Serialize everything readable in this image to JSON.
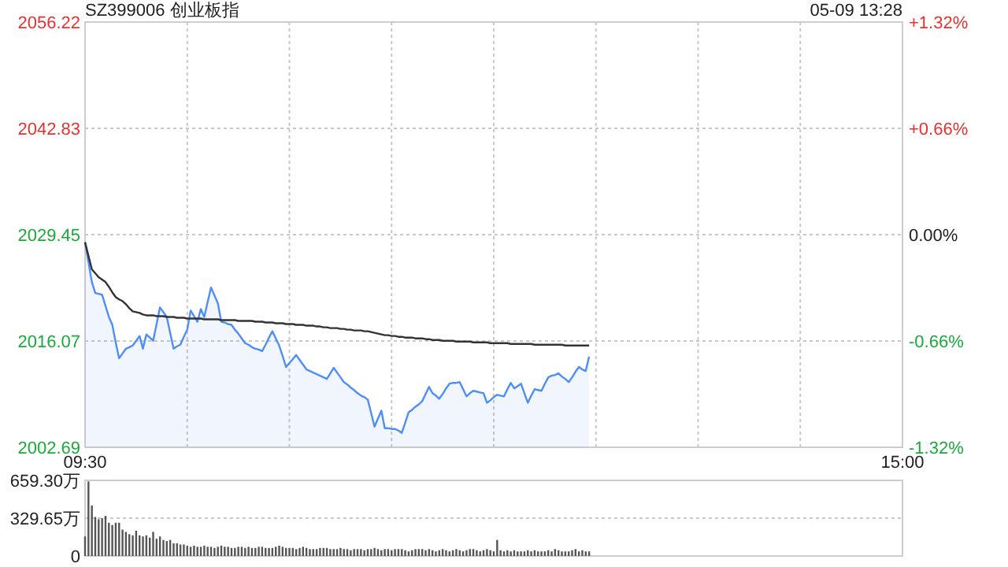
{
  "chart_data": [
    {
      "type": "line",
      "title": "SZ399006 创业板指",
      "subtitle": "05-09 13:28",
      "categories": [
        "09:30",
        null,
        null,
        null,
        null,
        null,
        null,
        null,
        null,
        null,
        null,
        null,
        null,
        null,
        null,
        null,
        null,
        null,
        null,
        null,
        null,
        null,
        null,
        null,
        null,
        null,
        null,
        null,
        null,
        null,
        null,
        null,
        null,
        null,
        null,
        null,
        null,
        null,
        null,
        null,
        null,
        null,
        null,
        null,
        null,
        null,
        null,
        null,
        null,
        null,
        null,
        null,
        null,
        null,
        null,
        null,
        null,
        null,
        null,
        null,
        null,
        null,
        null,
        null,
        null,
        null,
        null,
        null,
        null,
        null,
        null,
        null,
        null,
        null,
        null,
        null,
        null,
        null,
        null,
        null,
        null,
        null,
        null,
        null,
        null,
        null,
        null,
        null,
        null,
        null,
        null,
        null,
        null,
        null,
        null,
        null,
        null,
        null,
        null,
        null,
        null,
        null,
        null,
        null,
        null,
        null,
        null,
        null,
        null,
        null,
        null,
        null,
        null,
        null,
        null,
        null,
        null,
        null,
        null,
        null,
        null,
        null,
        null,
        null,
        null,
        null,
        null,
        null,
        null,
        null,
        null,
        null,
        null,
        null,
        null,
        null,
        null,
        null,
        null,
        null,
        null,
        null,
        null,
        null,
        null,
        null,
        null,
        null,
        null,
        null,
        null,
        null,
        null,
        null,
        null,
        null,
        null,
        null,
        null,
        null,
        null,
        null,
        null,
        null,
        null,
        null,
        null,
        null,
        null,
        null,
        null,
        null,
        null,
        null,
        null,
        null,
        null,
        null,
        null,
        null,
        null,
        null,
        null,
        null,
        null,
        null,
        null,
        null,
        null,
        null,
        null,
        null,
        null,
        null,
        null,
        null,
        null,
        null,
        null,
        null,
        null,
        null,
        null,
        null,
        null,
        null,
        null,
        null,
        null,
        null,
        null,
        null,
        null,
        null,
        null,
        null,
        null,
        null,
        null,
        null,
        null,
        null,
        null,
        null,
        null,
        null,
        null,
        null,
        null,
        null,
        null,
        null,
        null,
        null,
        null,
        null,
        null,
        null,
        null,
        null,
        "15:00"
      ],
      "ylim": [
        2002.69,
        2056.22
      ],
      "yticks": [
        2002.69,
        2016.07,
        2029.45,
        2042.83,
        2056.22
      ],
      "y2lim": [
        -1.32,
        1.32
      ],
      "y2ticks": [
        {
          "value": -1.32,
          "label": "-1.32%"
        },
        {
          "value": -0.66,
          "label": "-0.66%"
        },
        {
          "value": 0,
          "label": "0.00%"
        },
        {
          "value": 0.66,
          "label": "+0.66%"
        },
        {
          "value": 1.32,
          "label": "+1.32%"
        }
      ],
      "grid": true,
      "series": [
        {
          "type": "area",
          "color": "#4f8ef7",
          "values": [
            2028.5,
            2026.0,
            2023.5,
            2022.1,
            2022.0,
            2021.9,
            2020.5,
            2019.1,
            2018.1,
            2015.9,
            2013.9,
            2014.5,
            2015.1,
            2015.3,
            2015.5,
            2016.1,
            2016.7,
            2015.1,
            2016.9,
            2016.5,
            2016.1,
            2018.2,
            2020.3,
            2019.7,
            2019.1,
            2017.1,
            2015.1,
            2015.4,
            2015.6,
            2016.6,
            2017.5,
            2019.9,
            2019.2,
            2018.5,
            2020.1,
            2019.1,
            2021.0,
            2022.8,
            2021.8,
            2020.8,
            2018.5,
            2018.4,
            2018.2,
            2018.1,
            2017.5,
            2017.0,
            2016.4,
            2015.8,
            2015.6,
            2015.3,
            2015.1,
            2015.0,
            2014.8,
            2015.6,
            2016.5,
            2017.3,
            2016.4,
            2015.5,
            2014.2,
            2012.8,
            2013.3,
            2013.8,
            2014.3,
            2013.7,
            2013.1,
            2012.5,
            2012.3,
            2012.1,
            2011.9,
            2011.7,
            2011.5,
            2011.3,
            2012.0,
            2012.7,
            2012.1,
            2011.5,
            2010.9,
            2010.6,
            2010.2,
            2009.9,
            2009.5,
            2009.2,
            2009.0,
            2008.7,
            2007.0,
            2005.3,
            2006.3,
            2007.3,
            2005.1,
            2005.1,
            2005.0,
            2005.0,
            2004.8,
            2004.5,
            2005.8,
            2007.1,
            2007.4,
            2007.8,
            2008.1,
            2008.5,
            2009.4,
            2010.3,
            2009.5,
            2009.2,
            2008.8,
            2009.4,
            2010.1,
            2010.7,
            2010.8,
            2010.8,
            2010.9,
            2010.0,
            2009.1,
            2009.5,
            2009.8,
            2009.7,
            2009.6,
            2009.5,
            2008.3,
            2008.6,
            2009.0,
            2009.3,
            2009.2,
            2009.1,
            2010.0,
            2010.8,
            2010.1,
            2010.4,
            2010.7,
            2009.5,
            2008.3,
            2009.2,
            2010.0,
            2009.9,
            2009.8,
            2010.7,
            2011.5,
            2011.7,
            2011.8,
            2012.0,
            2011.6,
            2011.3,
            2010.9,
            2011.5,
            2012.2,
            2012.8,
            2012.5,
            2012.3,
            2014.1,
            null,
            null,
            null,
            null,
            null,
            null,
            null,
            null,
            null,
            null,
            null,
            null,
            null,
            null,
            null,
            null,
            null,
            null,
            null,
            null,
            null,
            null,
            null,
            null,
            null,
            null,
            null,
            null,
            null,
            null,
            null,
            null,
            null,
            null,
            null,
            null,
            null,
            null,
            null,
            null,
            null,
            null,
            null,
            null,
            null,
            null,
            null,
            null,
            null,
            null,
            null,
            null,
            null,
            null,
            null,
            null,
            null,
            null,
            null,
            null,
            null,
            null,
            null,
            null,
            null,
            null,
            null,
            null,
            null,
            null,
            null,
            null,
            null,
            null,
            null,
            null,
            null,
            null,
            null,
            null,
            null,
            null,
            null,
            null,
            null,
            null,
            null,
            null,
            null,
            null,
            null,
            null
          ]
        },
        {
          "type": "line",
          "color": "#333333",
          "values": [
            2028.5,
            2026.8,
            2025.1,
            2024.6,
            2024.1,
            2023.8,
            2023.5,
            2022.9,
            2022.2,
            2021.6,
            2021.3,
            2021.1,
            2020.7,
            2020.2,
            2019.8,
            2019.7,
            2019.6,
            2019.4,
            2019.3,
            2019.3,
            2019.3,
            2019.2,
            2019.2,
            2019.2,
            2019.1,
            2019.1,
            2019.1,
            2019.0,
            2019.0,
            2019.0,
            2018.9,
            2018.9,
            2018.9,
            2018.9,
            2018.9,
            2018.8,
            2018.8,
            2018.8,
            2018.8,
            2018.8,
            2018.7,
            2018.7,
            2018.7,
            2018.7,
            2018.7,
            2018.6,
            2018.6,
            2018.6,
            2018.6,
            2018.6,
            2018.5,
            2018.5,
            2018.5,
            2018.4,
            2018.4,
            2018.4,
            2018.3,
            2018.3,
            2018.3,
            2018.2,
            2018.2,
            2018.2,
            2018.1,
            2018.1,
            2018.1,
            2018.0,
            2018.0,
            2018.0,
            2017.9,
            2017.9,
            2017.8,
            2017.8,
            2017.7,
            2017.7,
            2017.7,
            2017.6,
            2017.6,
            2017.5,
            2017.5,
            2017.4,
            2017.4,
            2017.4,
            2017.3,
            2017.3,
            2017.2,
            2017.1,
            2017.0,
            2016.9,
            2016.8,
            2016.8,
            2016.7,
            2016.7,
            2016.6,
            2016.6,
            2016.5,
            2016.5,
            2016.5,
            2016.4,
            2016.4,
            2016.4,
            2016.3,
            2016.3,
            2016.2,
            2016.2,
            2016.2,
            2016.1,
            2016.1,
            2016.1,
            2016.1,
            2016.0,
            2016.0,
            2016.0,
            2016.0,
            2016.0,
            2015.9,
            2015.9,
            2015.9,
            2015.9,
            2015.9,
            2015.8,
            2015.8,
            2015.8,
            2015.8,
            2015.8,
            2015.8,
            2015.7,
            2015.7,
            2015.7,
            2015.7,
            2015.7,
            2015.7,
            2015.7,
            2015.6,
            2015.6,
            2015.6,
            2015.6,
            2015.6,
            2015.6,
            2015.6,
            2015.6,
            2015.6,
            2015.5,
            2015.5,
            2015.5,
            2015.5,
            2015.5,
            2015.5,
            2015.5,
            2015.5,
            null,
            null,
            null,
            null,
            null,
            null,
            null,
            null,
            null,
            null,
            null,
            null,
            null,
            null,
            null,
            null,
            null,
            null,
            null,
            null,
            null,
            null,
            null,
            null,
            null,
            null,
            null,
            null,
            null,
            null,
            null,
            null,
            null,
            null,
            null,
            null,
            null,
            null,
            null,
            null,
            null,
            null,
            null,
            null,
            null,
            null,
            null,
            null,
            null,
            null,
            null,
            null,
            null,
            null,
            null,
            null,
            null,
            null,
            null,
            null,
            null,
            null,
            null,
            null,
            null,
            null,
            null,
            null,
            null,
            null,
            null,
            null,
            null,
            null,
            null,
            null,
            null,
            null,
            null,
            null,
            null,
            null,
            null,
            null,
            null,
            null,
            null,
            null,
            null,
            null,
            null,
            null
          ]
        }
      ]
    },
    {
      "type": "bar",
      "color": "#555555",
      "ylim": [
        0,
        659.3
      ],
      "yticks": [
        {
          "value": 0,
          "label": "0"
        },
        {
          "value": 329.65,
          "label": "329.65万"
        },
        {
          "value": 659.3,
          "label": "659.30万"
        }
      ],
      "grid": "y",
      "tick_labels": "y",
      "categories": [
        null,
        null,
        null,
        null,
        null,
        null,
        null,
        null,
        null,
        null,
        null,
        null,
        null,
        null,
        null,
        null,
        null,
        null,
        null,
        null,
        null,
        null,
        null,
        null,
        null,
        null,
        null,
        null,
        null,
        null,
        null,
        null,
        null,
        null,
        null,
        null,
        null,
        null,
        null,
        null,
        null,
        null,
        null,
        null,
        null,
        null,
        null,
        null,
        null,
        null,
        null,
        null,
        null,
        null,
        null,
        null,
        null,
        null,
        null,
        null,
        null,
        null,
        null,
        null,
        null,
        null,
        null,
        null,
        null,
        null,
        null,
        null,
        null,
        null,
        null,
        null,
        null,
        null,
        null,
        null,
        null,
        null,
        null,
        null,
        null,
        null,
        null,
        null,
        null,
        null,
        null,
        null,
        null,
        null,
        null,
        null,
        null,
        null,
        null,
        null,
        null,
        null,
        null,
        null,
        null,
        null,
        null,
        null,
        null,
        null,
        null,
        null,
        null,
        null,
        null,
        null,
        null,
        null,
        null,
        null,
        null,
        null,
        null,
        null,
        null,
        null,
        null,
        null,
        null,
        null,
        null,
        null,
        null,
        null,
        null,
        null,
        null,
        null,
        null,
        null,
        null,
        null,
        null,
        null,
        null,
        null,
        null,
        null,
        null,
        null,
        null,
        null,
        null,
        null,
        null,
        null,
        null,
        null,
        null,
        null,
        null,
        null,
        null,
        null,
        null,
        null,
        null,
        null,
        null,
        null,
        null,
        null,
        null,
        null,
        null,
        null,
        null,
        null,
        null,
        null,
        null,
        null,
        null,
        null,
        null,
        null,
        null,
        null,
        null,
        null,
        null,
        null,
        null,
        null,
        null,
        null,
        null,
        null,
        null,
        null,
        null,
        null,
        null,
        null,
        null,
        null,
        null,
        null,
        null,
        null,
        null,
        null,
        null,
        null,
        null,
        null,
        null,
        null,
        null,
        null,
        null,
        null,
        null,
        null,
        null,
        null,
        null,
        null,
        null,
        null,
        null,
        null,
        null,
        null,
        null,
        null,
        null,
        null,
        null,
        null,
        null
      ],
      "values": [
        170,
        650,
        440,
        340,
        320,
        330,
        350,
        290,
        270,
        290,
        290,
        230,
        210,
        190,
        180,
        220,
        180,
        170,
        180,
        160,
        210,
        150,
        170,
        140,
        130,
        140,
        110,
        110,
        100,
        100,
        90,
        80,
        90,
        80,
        80,
        90,
        80,
        80,
        70,
        80,
        90,
        80,
        80,
        70,
        70,
        80,
        80,
        70,
        80,
        70,
        70,
        80,
        80,
        70,
        70,
        70,
        80,
        90,
        80,
        70,
        70,
        70,
        60,
        70,
        80,
        70,
        60,
        60,
        60,
        70,
        70,
        70,
        60,
        60,
        60,
        70,
        60,
        60,
        50,
        60,
        60,
        60,
        50,
        60,
        60,
        70,
        60,
        50,
        60,
        60,
        50,
        60,
        60,
        60,
        50,
        40,
        50,
        60,
        60,
        60,
        50,
        60,
        50,
        40,
        50,
        60,
        50,
        40,
        50,
        60,
        50,
        40,
        50,
        60,
        60,
        50,
        40,
        50,
        60,
        50,
        40,
        140,
        50,
        40,
        50,
        40,
        50,
        40,
        40,
        40,
        50,
        40,
        50,
        40,
        40,
        40,
        50,
        40,
        60,
        50,
        40,
        40,
        40,
        50,
        60,
        40,
        50,
        40,
        40,
        null,
        null,
        null,
        null,
        null,
        null,
        null,
        null,
        null,
        null,
        null,
        null,
        null,
        null,
        null,
        null,
        null,
        null,
        null,
        null,
        null,
        null,
        null,
        null,
        null,
        null,
        null,
        null,
        null,
        null,
        null,
        null,
        null,
        null,
        null,
        null,
        null,
        null,
        null,
        null,
        null,
        null,
        null,
        null,
        null,
        null,
        null,
        null,
        null,
        null,
        null,
        null,
        null,
        null,
        null,
        null,
        null,
        null,
        null,
        null,
        null,
        null,
        null,
        null,
        null,
        null,
        null,
        null,
        null,
        null,
        null,
        null,
        null,
        null,
        null,
        null,
        null,
        null,
        null,
        null,
        null,
        null,
        null,
        null,
        null,
        null,
        null,
        null,
        null,
        null,
        null,
        null
      ]
    }
  ]
}
